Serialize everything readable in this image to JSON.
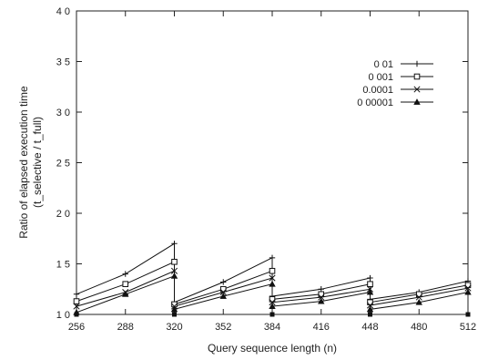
{
  "chart_data": {
    "type": "line",
    "xlabel": "Query sequence length (n)",
    "ylabel_line1": "Ratio of elapsed execution time",
    "ylabel_line2": "(t_selective / t_full)",
    "xlim": [
      256,
      512
    ],
    "ylim": [
      1.0,
      4.0
    ],
    "x_ticks": [
      256,
      288,
      320,
      352,
      384,
      416,
      448,
      480,
      512
    ],
    "x_tick_labels": [
      "256",
      "288",
      "320",
      "352",
      "384",
      "416",
      "448",
      "480",
      "512"
    ],
    "y_ticks": [
      1.0,
      1.5,
      2.0,
      2.5,
      3.0,
      3.5,
      4.0
    ],
    "y_tick_labels": [
      "1 0",
      "1 5",
      "2 0",
      "2 5",
      "3 0",
      "3 5",
      "4 0"
    ],
    "grid": false,
    "legend_position": "top-right",
    "x": [
      256,
      288,
      320,
      320,
      352,
      384,
      384,
      416,
      448,
      448,
      480,
      512
    ],
    "series": [
      {
        "name": "0 01",
        "marker": "plus",
        "values": [
          1.2,
          1.4,
          1.7,
          1.12,
          1.32,
          1.56,
          1.18,
          1.25,
          1.36,
          1.15,
          1.22,
          1.33
        ]
      },
      {
        "name": "0 001",
        "marker": "square",
        "values": [
          1.13,
          1.3,
          1.52,
          1.1,
          1.25,
          1.43,
          1.15,
          1.2,
          1.3,
          1.12,
          1.2,
          1.29
        ]
      },
      {
        "name": "0.0001",
        "marker": "cross",
        "values": [
          1.08,
          1.22,
          1.43,
          1.08,
          1.22,
          1.36,
          1.12,
          1.17,
          1.25,
          1.09,
          1.17,
          1.26
        ]
      },
      {
        "name": "0 00001",
        "marker": "triangle",
        "values": [
          1.02,
          1.2,
          1.38,
          1.05,
          1.18,
          1.3,
          1.08,
          1.13,
          1.22,
          1.05,
          1.12,
          1.22
        ]
      }
    ],
    "baseline_markers_x": [
      256,
      320,
      384,
      448,
      512
    ],
    "baseline_value": 1.0
  }
}
